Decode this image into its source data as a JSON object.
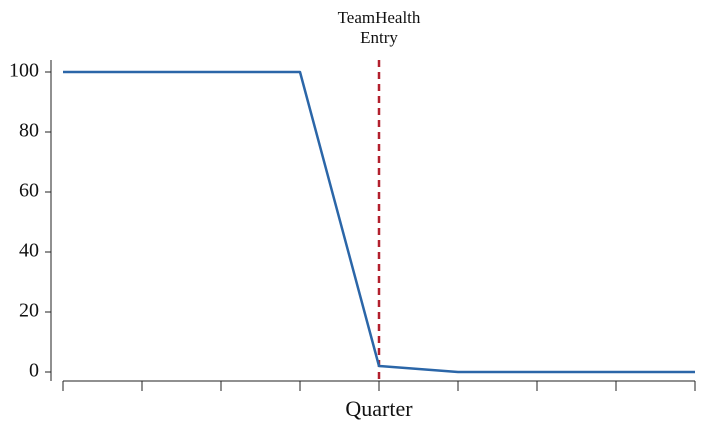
{
  "chart_data": {
    "type": "line",
    "x_label": "Quarter",
    "categories": [
      null,
      null,
      null,
      null,
      null,
      null,
      null,
      null,
      null
    ],
    "series": [
      {
        "color": "#2b66a8",
        "values": [
          100,
          100,
          100,
          100,
          2,
          0,
          0,
          0,
          0
        ]
      }
    ],
    "ylim": [
      -3,
      104
    ],
    "yticks": [
      0,
      20,
      40,
      60,
      80,
      100
    ],
    "vline": {
      "x": 4,
      "color": "#b2202e",
      "label": [
        "TeamHealth",
        "Entry"
      ]
    }
  }
}
